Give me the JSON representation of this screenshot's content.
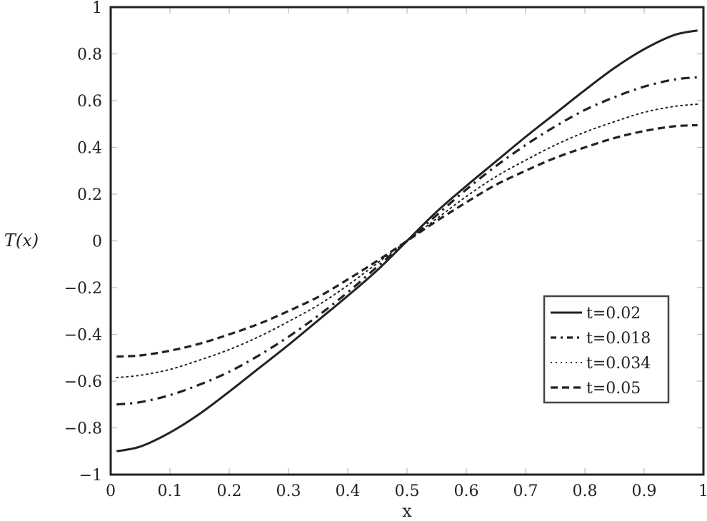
{
  "chart_data": {
    "type": "line",
    "title": "",
    "xlabel": "x",
    "ylabel": "T(x)",
    "xlim": [
      0,
      1
    ],
    "ylim": [
      -1,
      1
    ],
    "grid": false,
    "legend_position": "lower right (inside)",
    "xticks": [
      "0",
      "0.1",
      "0.2",
      "0.3",
      "0.4",
      "0.5",
      "0.6",
      "0.7",
      "0.8",
      "0.9",
      "1"
    ],
    "yticks": [
      "1",
      "0.8",
      "0.6",
      "0.4",
      "0.2",
      "0",
      "−0.2",
      "−0.4",
      "−0.6",
      "−0.8",
      "−1"
    ],
    "x": [
      0.01,
      0.05,
      0.1,
      0.15,
      0.2,
      0.25,
      0.3,
      0.35,
      0.4,
      0.45,
      0.5,
      0.55,
      0.6,
      0.65,
      0.7,
      0.75,
      0.8,
      0.85,
      0.9,
      0.95,
      0.99
    ],
    "series": [
      {
        "name": "t=0.02",
        "style": "solid",
        "values": [
          -0.9,
          -0.88,
          -0.82,
          -0.74,
          -0.645,
          -0.545,
          -0.445,
          -0.34,
          -0.235,
          -0.125,
          0.0,
          0.125,
          0.235,
          0.34,
          0.445,
          0.545,
          0.645,
          0.74,
          0.82,
          0.88,
          0.9
        ]
      },
      {
        "name": "t=0.018",
        "style": "dash-dot",
        "values": [
          -0.7,
          -0.69,
          -0.66,
          -0.615,
          -0.56,
          -0.49,
          -0.41,
          -0.32,
          -0.22,
          -0.11,
          0.0,
          0.11,
          0.22,
          0.32,
          0.41,
          0.49,
          0.56,
          0.615,
          0.66,
          0.69,
          0.7
        ]
      },
      {
        "name": "t=0.034",
        "style": "dotted",
        "values": [
          -0.585,
          -0.575,
          -0.55,
          -0.51,
          -0.465,
          -0.41,
          -0.345,
          -0.275,
          -0.19,
          -0.095,
          0.0,
          0.095,
          0.19,
          0.275,
          0.345,
          0.41,
          0.465,
          0.51,
          0.55,
          0.575,
          0.585
        ]
      },
      {
        "name": "t=0.05",
        "style": "dashed",
        "values": [
          -0.495,
          -0.49,
          -0.47,
          -0.44,
          -0.4,
          -0.355,
          -0.3,
          -0.24,
          -0.165,
          -0.085,
          0.0,
          0.085,
          0.165,
          0.24,
          0.3,
          0.355,
          0.4,
          0.44,
          0.47,
          0.49,
          0.495
        ]
      }
    ]
  },
  "colors": {
    "line": "#222222",
    "frame": "#222222",
    "tick_mark": "#bbbbbb",
    "legend_border": "#444444",
    "background": "#ffffff"
  }
}
